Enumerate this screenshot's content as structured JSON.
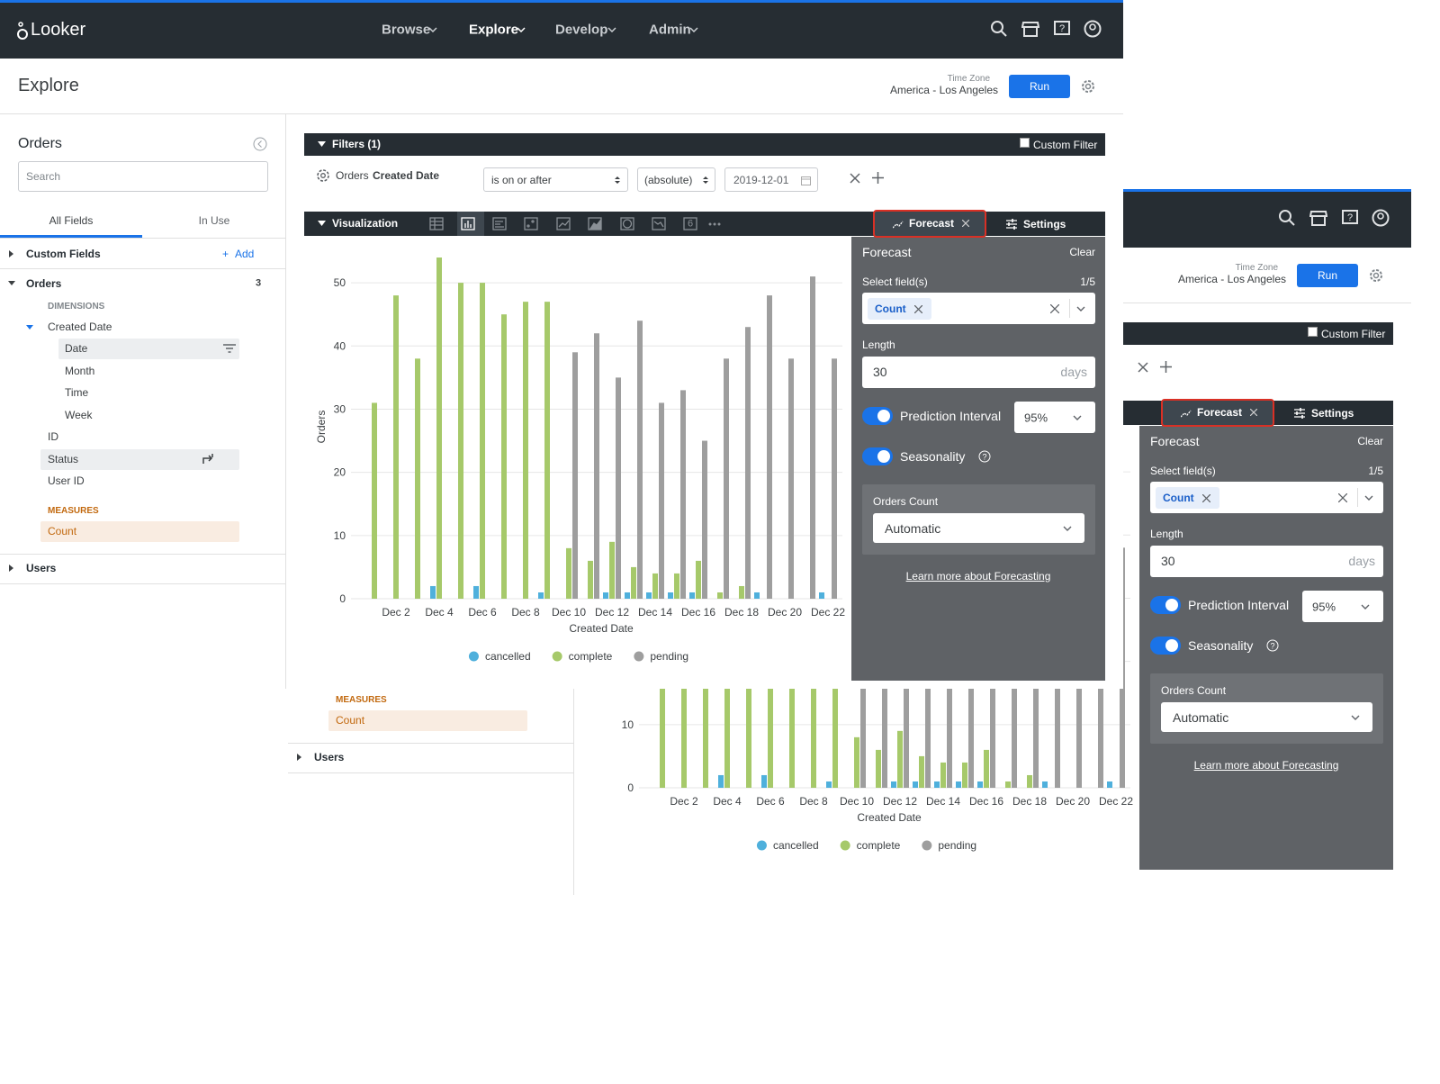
{
  "nav": {
    "brand": "Looker",
    "menu": [
      "Browse",
      "Explore",
      "Develop",
      "Admin"
    ]
  },
  "header": {
    "title": "Explore",
    "time_zone_label": "Time Zone",
    "time_zone": "America - Los Angeles",
    "run": "Run"
  },
  "field_picker": {
    "title": "Orders",
    "search_placeholder": "Search",
    "tabs": [
      "All Fields",
      "In Use"
    ],
    "custom_fields": "Custom Fields",
    "add": "Add",
    "view": "Orders",
    "view_count": 3,
    "dimensions_label": "DIMENSIONS",
    "created_date": "Created Date",
    "timeframes": [
      "Date",
      "Month",
      "Time",
      "Week"
    ],
    "dimensions": [
      "ID",
      "Status",
      "User ID"
    ],
    "measures_label": "MEASURES",
    "measures": [
      "Count"
    ],
    "other_view": "Users"
  },
  "filters": {
    "title": "Filters (1)",
    "custom_filter": "Custom Filter",
    "field_view": "Orders",
    "field_name": "Created Date",
    "operator": "is on or after",
    "mode": "(absolute)",
    "date": "2019-12-01"
  },
  "visualization": {
    "title": "Visualization",
    "single_value_icon": "6",
    "forecast_tab": "Forecast",
    "settings_tab": "Settings"
  },
  "forecast": {
    "title": "Forecast",
    "clear": "Clear",
    "select_label": "Select field(s)",
    "select_count": "1/5",
    "chip": "Count",
    "length_label": "Length",
    "length": 30,
    "length_unit": "days",
    "prediction_interval": "Prediction Interval",
    "interval": "95%",
    "seasonality": "Seasonality",
    "series_label": "Orders Count",
    "series_mode": "Automatic",
    "learn_more": "Learn more about Forecasting"
  },
  "chart_data": {
    "type": "bar",
    "x_label": "Created Date",
    "y_label": "Orders",
    "categories": [
      null,
      "Dec 2",
      null,
      "Dec 4",
      null,
      "Dec 6",
      null,
      "Dec 8",
      null,
      "Dec 10",
      null,
      "Dec 12",
      null,
      "Dec 14",
      null,
      "Dec 16",
      null,
      "Dec 18",
      null,
      "Dec 20",
      null,
      "Dec 22"
    ],
    "series": [
      {
        "name": "cancelled",
        "color": "#4fb0dc",
        "values": [
          null,
          null,
          null,
          2,
          null,
          2,
          null,
          null,
          1,
          null,
          null,
          1,
          1,
          1,
          1,
          1,
          null,
          null,
          1,
          null,
          null,
          1
        ]
      },
      {
        "name": "complete",
        "color": "#a6c96a",
        "values": [
          31,
          48,
          38,
          54,
          50,
          50,
          45,
          47,
          47,
          8,
          6,
          9,
          5,
          4,
          4,
          6,
          1,
          2,
          null,
          null,
          null,
          null
        ]
      },
      {
        "name": "pending",
        "color": "#9e9e9e",
        "values": [
          null,
          null,
          null,
          null,
          null,
          null,
          null,
          null,
          null,
          39,
          42,
          35,
          44,
          31,
          33,
          25,
          38,
          43,
          48,
          38,
          51,
          38
        ]
      }
    ],
    "ylim": [
      0,
      55
    ],
    "yticks": [
      0,
      10,
      20,
      30,
      40,
      50
    ],
    "grid": true,
    "legend": "bottom"
  }
}
